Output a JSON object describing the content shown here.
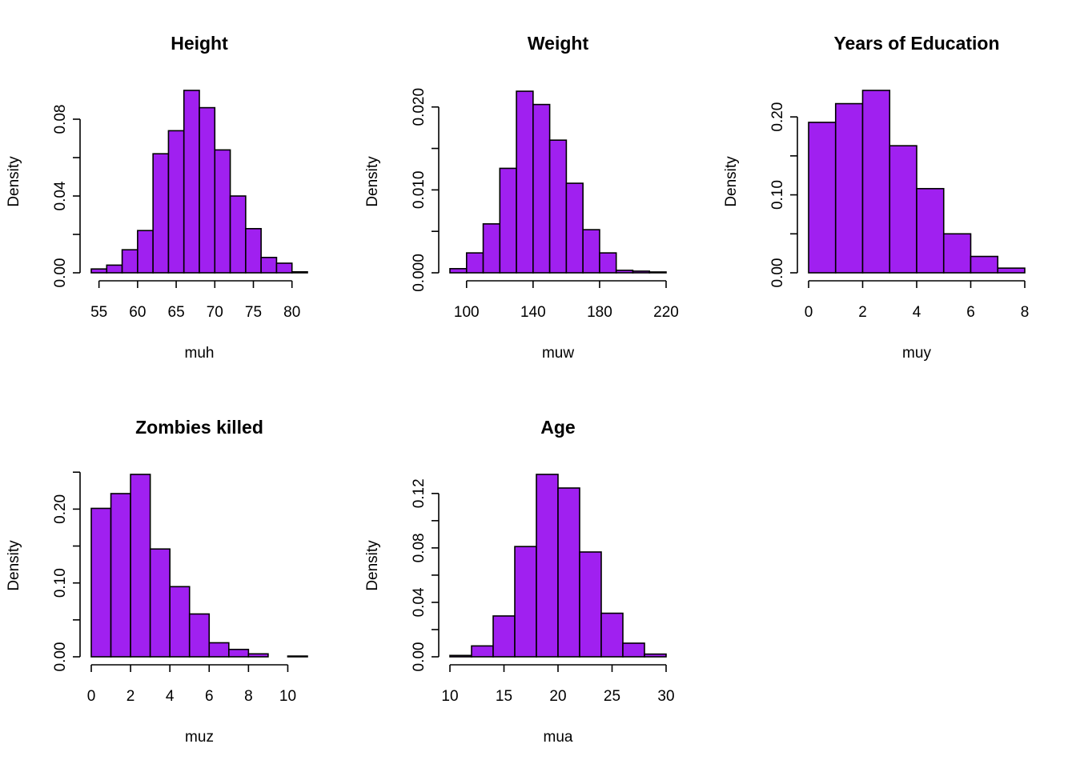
{
  "chart_data": [
    {
      "type": "histogram",
      "title": "Height",
      "xlabel": "muh",
      "ylabel": "Density",
      "bin_edges": [
        54,
        56,
        58,
        60,
        62,
        64,
        66,
        68,
        70,
        72,
        74,
        76,
        78,
        80,
        82
      ],
      "values": [
        0.002,
        0.004,
        0.012,
        0.022,
        0.062,
        0.074,
        0.095,
        0.086,
        0.064,
        0.04,
        0.023,
        0.008,
        0.005,
        0.0005
      ],
      "xticks": [
        55,
        60,
        65,
        70,
        75,
        80
      ],
      "xtick_labels": [
        "55",
        "60",
        "65",
        "70",
        "75",
        "80"
      ],
      "yticks": [
        0,
        0.02,
        0.04,
        0.06,
        0.08
      ],
      "ytick_labels": [
        "0.00",
        "",
        "0.04",
        "",
        "0.08"
      ],
      "xlim": [
        54,
        82
      ],
      "ylim": [
        0,
        0.095
      ],
      "bar_color": "#a020f0"
    },
    {
      "type": "histogram",
      "title": "Weight",
      "xlabel": "muw",
      "ylabel": "Density",
      "bin_edges": [
        90,
        100,
        110,
        120,
        130,
        140,
        150,
        160,
        170,
        180,
        190,
        200,
        210,
        220
      ],
      "values": [
        0.0005,
        0.0024,
        0.0059,
        0.0126,
        0.0219,
        0.0203,
        0.016,
        0.0108,
        0.0052,
        0.0024,
        0.0003,
        0.0002,
        0.0001
      ],
      "xticks": [
        100,
        140,
        180,
        220
      ],
      "xtick_labels": [
        "100",
        "140",
        "180",
        "220"
      ],
      "yticks": [
        0,
        0.005,
        0.01,
        0.015,
        0.02
      ],
      "ytick_labels": [
        "0.000",
        "",
        "0.010",
        "",
        "0.020"
      ],
      "xlim": [
        90,
        220
      ],
      "ylim": [
        0,
        0.022
      ],
      "bar_color": "#a020f0"
    },
    {
      "type": "histogram",
      "title": "Years of Education",
      "xlabel": "muy",
      "ylabel": "Density",
      "bin_edges": [
        0,
        1,
        2,
        3,
        4,
        5,
        6,
        7,
        8
      ],
      "values": [
        0.193,
        0.217,
        0.234,
        0.163,
        0.108,
        0.05,
        0.021,
        0.006
      ],
      "xticks": [
        0,
        2,
        4,
        6,
        8
      ],
      "xtick_labels": [
        "0",
        "2",
        "4",
        "6",
        "8"
      ],
      "yticks": [
        0,
        0.05,
        0.1,
        0.15,
        0.2
      ],
      "ytick_labels": [
        "0.00",
        "",
        "0.10",
        "",
        "0.20"
      ],
      "xlim": [
        0,
        8
      ],
      "ylim": [
        0,
        0.234
      ],
      "bar_color": "#a020f0"
    },
    {
      "type": "histogram",
      "title": "Zombies killed",
      "xlabel": "muz",
      "ylabel": "Density",
      "bin_edges": [
        0,
        1,
        2,
        3,
        4,
        5,
        6,
        7,
        8,
        9,
        10,
        11
      ],
      "values": [
        0.201,
        0.221,
        0.247,
        0.146,
        0.095,
        0.058,
        0.019,
        0.01,
        0.004,
        0.0,
        0.001
      ],
      "xticks": [
        0,
        2,
        4,
        6,
        8,
        10
      ],
      "xtick_labels": [
        "0",
        "2",
        "4",
        "6",
        "8",
        "10"
      ],
      "yticks": [
        0,
        0.05,
        0.1,
        0.15,
        0.2,
        0.25
      ],
      "ytick_labels": [
        "0.00",
        "",
        "0.10",
        "",
        "0.20",
        ""
      ],
      "xlim": [
        0,
        11
      ],
      "ylim": [
        0,
        0.247
      ],
      "bar_color": "#a020f0"
    },
    {
      "type": "histogram",
      "title": "Age",
      "xlabel": "mua",
      "ylabel": "Density",
      "bin_edges": [
        10,
        12,
        14,
        16,
        18,
        20,
        22,
        24,
        26,
        28,
        30
      ],
      "values": [
        0.001,
        0.008,
        0.03,
        0.081,
        0.134,
        0.124,
        0.077,
        0.032,
        0.01,
        0.002
      ],
      "xticks": [
        10,
        15,
        20,
        25,
        30
      ],
      "xtick_labels": [
        "10",
        "15",
        "20",
        "25",
        "30"
      ],
      "yticks": [
        0,
        0.02,
        0.04,
        0.06,
        0.08,
        0.1,
        0.12
      ],
      "ytick_labels": [
        "0.00",
        "",
        "0.04",
        "",
        "0.08",
        "",
        "0.12"
      ],
      "xlim": [
        10,
        30
      ],
      "ylim": [
        0,
        0.134
      ],
      "bar_color": "#a020f0"
    }
  ]
}
